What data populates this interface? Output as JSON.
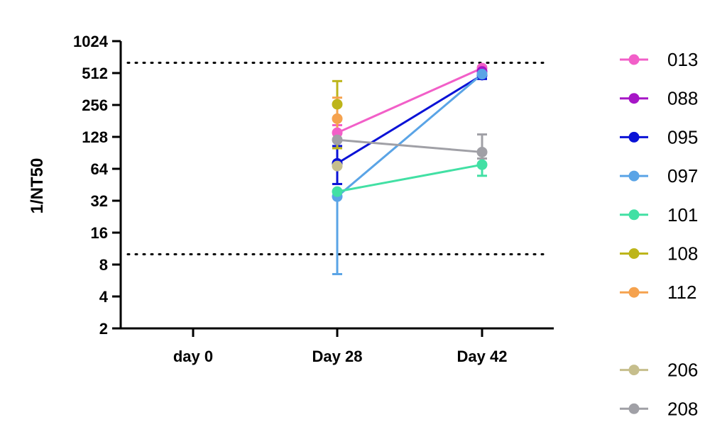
{
  "chart_data": {
    "type": "line",
    "ylabel": "1/NT50",
    "xlabel": "",
    "y_scale": "log2",
    "ylim": [
      2,
      1024
    ],
    "y_ticks": [
      2,
      4,
      8,
      16,
      32,
      64,
      128,
      256,
      512,
      1024
    ],
    "y_tick_labels": [
      "2",
      "4",
      "8",
      "16",
      "32",
      "64",
      "128",
      "256",
      "512",
      "1024"
    ],
    "categories": [
      "day 0",
      "Day 28",
      "Day 42"
    ],
    "reference_lines": [
      {
        "y": 640,
        "style": "dotted"
      },
      {
        "y": 10,
        "style": "dotted"
      }
    ],
    "legend_position": "right",
    "series": [
      {
        "name": "013",
        "color": "#f25fc8",
        "values": [
          null,
          140,
          570
        ],
        "err_low": [
          null,
          120,
          545
        ],
        "err_high": [
          null,
          165,
          590
        ]
      },
      {
        "name": "088",
        "color": "#a616c6",
        "values": [
          null,
          null,
          530
        ]
      },
      {
        "name": "095",
        "color": "#0a12d6",
        "values": [
          null,
          72,
          490
        ],
        "err_low": [
          null,
          46,
          450
        ],
        "err_high": [
          null,
          105,
          530
        ]
      },
      {
        "name": "097",
        "color": "#5aa4e6",
        "values": [
          null,
          35,
          500
        ],
        "err_low": [
          null,
          6.5,
          480
        ],
        "err_high": [
          null,
          40,
          520
        ]
      },
      {
        "name": "101",
        "color": "#42e0a4",
        "values": [
          null,
          39,
          70
        ],
        "err_low": [
          null,
          39,
          55
        ],
        "err_high": [
          null,
          39,
          80
        ]
      },
      {
        "name": "108",
        "color": "#bdb51a",
        "values": [
          null,
          260,
          null
        ],
        "err_low": [
          null,
          100,
          null
        ],
        "err_high": [
          null,
          430,
          null
        ]
      },
      {
        "name": "112",
        "color": "#f5a24e",
        "values": [
          null,
          190,
          null
        ],
        "err_low": [
          null,
          120,
          null
        ],
        "err_high": [
          null,
          300,
          null
        ]
      },
      {
        "name": "206",
        "color": "#c6be8c",
        "values": [
          null,
          68,
          null
        ]
      },
      {
        "name": "208",
        "color": "#a0a0a6",
        "values": [
          null,
          120,
          92
        ],
        "err_low": [
          null,
          120,
          80
        ],
        "err_high": [
          null,
          120,
          135
        ]
      }
    ],
    "legend": [
      {
        "name": "013",
        "color": "#f25fc8",
        "slot": 0
      },
      {
        "name": "088",
        "color": "#a616c6",
        "slot": 1
      },
      {
        "name": "095",
        "color": "#0a12d6",
        "slot": 2
      },
      {
        "name": "097",
        "color": "#5aa4e6",
        "slot": 3
      },
      {
        "name": "101",
        "color": "#42e0a4",
        "slot": 4
      },
      {
        "name": "108",
        "color": "#bdb51a",
        "slot": 5
      },
      {
        "name": "112",
        "color": "#f5a24e",
        "slot": 6
      },
      {
        "name": "206",
        "color": "#c6be8c",
        "slot": 8
      },
      {
        "name": "208",
        "color": "#a0a0a6",
        "slot": 9
      }
    ]
  }
}
